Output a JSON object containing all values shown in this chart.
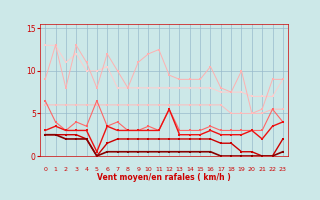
{
  "x": [
    0,
    1,
    2,
    3,
    4,
    5,
    6,
    7,
    8,
    9,
    10,
    11,
    12,
    13,
    14,
    15,
    16,
    17,
    18,
    19,
    20,
    21,
    22,
    23
  ],
  "line1": [
    9,
    13,
    8,
    13,
    11,
    8,
    12,
    10,
    8,
    11,
    12,
    12.5,
    9.5,
    9,
    9,
    9,
    10.5,
    8,
    7.5,
    10,
    5,
    5.5,
    9,
    9
  ],
  "line2": [
    13,
    13,
    11,
    12,
    10,
    10,
    10.5,
    8,
    8,
    8,
    8,
    8,
    8,
    8,
    8,
    8,
    8,
    7.5,
    7.5,
    7.5,
    7,
    7,
    7,
    9
  ],
  "line3": [
    6,
    6,
    6,
    6,
    6,
    6,
    6,
    6,
    6,
    6,
    6,
    6,
    6,
    6,
    6,
    6,
    6,
    6,
    5,
    5,
    5,
    5,
    5.5,
    5.5
  ],
  "line4": [
    6.5,
    4,
    3,
    4,
    3.5,
    6.5,
    3.5,
    4,
    3,
    3,
    3.5,
    3,
    5.5,
    3,
    3,
    3,
    3.5,
    3,
    3,
    3,
    3,
    3,
    5.5,
    4
  ],
  "line5": [
    3,
    3.5,
    3,
    3,
    3,
    0.5,
    3.5,
    3,
    3,
    3,
    3,
    3,
    5.5,
    2.5,
    2.5,
    2.5,
    3,
    2.5,
    2.5,
    2.5,
    3,
    2,
    3.5,
    4
  ],
  "line6": [
    2.5,
    2.5,
    2.5,
    2.5,
    2,
    0,
    1.5,
    2,
    2,
    2,
    2,
    2,
    2,
    2,
    2,
    2,
    2,
    1.5,
    1.5,
    0.5,
    0.5,
    0,
    0,
    2
  ],
  "line7": [
    2.5,
    2.5,
    2,
    2,
    2,
    0,
    0.5,
    0.5,
    0.5,
    0.5,
    0.5,
    0.5,
    0.5,
    0.5,
    0.5,
    0.5,
    0.5,
    0,
    0,
    0,
    0,
    0,
    0,
    0.5
  ],
  "bg_color": "#cce8e8",
  "grid_color": "#99bbcc",
  "line1_color": "#ffb0b0",
  "line2_color": "#ffcccc",
  "line3_color": "#ffbbbb",
  "line4_color": "#ff6666",
  "line5_color": "#ee1111",
  "line6_color": "#cc0000",
  "line7_color": "#880000",
  "xlabel": "Vent moyen/en rafales ( km/h )",
  "ylim": [
    0,
    15.5
  ],
  "yticks": [
    0,
    5,
    10,
    15
  ],
  "xticks": [
    0,
    1,
    2,
    3,
    4,
    5,
    6,
    7,
    8,
    9,
    10,
    11,
    12,
    13,
    14,
    15,
    16,
    17,
    18,
    19,
    20,
    21,
    22,
    23
  ],
  "wind_dirs": [
    "↓",
    "→",
    "↓",
    "↓",
    "↗",
    "↓",
    "↓",
    "↘",
    "↗",
    "↙",
    "↑",
    "←",
    "←",
    "↗",
    "←",
    "←",
    "↗",
    "←",
    "↙",
    "↑",
    "↓",
    "↓",
    "↗",
    "←"
  ]
}
